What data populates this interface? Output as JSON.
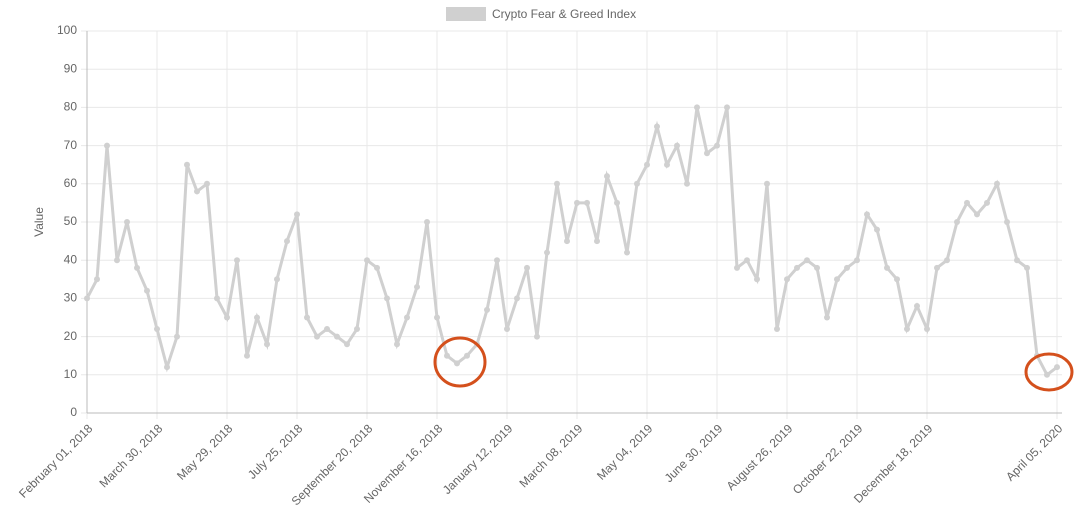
{
  "chart_data": {
    "type": "line",
    "legend": "Crypto Fear & Greed Index",
    "ylabel": "Value",
    "color": "#d0d0d0",
    "grid": true,
    "ylim": [
      0,
      100
    ],
    "yticks": [
      0,
      10,
      20,
      30,
      40,
      50,
      60,
      70,
      80,
      90,
      100
    ],
    "categories": [
      "February 01, 2018",
      null,
      null,
      null,
      null,
      null,
      null,
      "March 30, 2018",
      null,
      null,
      null,
      null,
      null,
      null,
      "May 29, 2018",
      null,
      null,
      null,
      null,
      null,
      null,
      "July 25, 2018",
      null,
      null,
      null,
      null,
      null,
      null,
      "September 20, 2018",
      null,
      null,
      null,
      null,
      null,
      null,
      "November 16, 2018",
      null,
      null,
      null,
      null,
      null,
      null,
      "January 12, 2019",
      null,
      null,
      null,
      null,
      null,
      null,
      "March 08, 2019",
      null,
      null,
      null,
      null,
      null,
      null,
      "May 04, 2019",
      null,
      null,
      null,
      null,
      null,
      null,
      "June 30, 2019",
      null,
      null,
      null,
      null,
      null,
      null,
      "August 26, 2019",
      null,
      null,
      null,
      null,
      null,
      null,
      "October 22, 2019",
      null,
      null,
      null,
      null,
      null,
      null,
      "December 18, 2019",
      null,
      null,
      null,
      null,
      null,
      null,
      null,
      null,
      null,
      null,
      null,
      null,
      "April 05, 2020"
    ],
    "values": [
      30,
      35,
      70,
      40,
      50,
      38,
      32,
      22,
      12,
      20,
      65,
      58,
      60,
      30,
      25,
      40,
      15,
      25,
      18,
      35,
      45,
      52,
      25,
      20,
      22,
      20,
      18,
      22,
      40,
      38,
      30,
      18,
      25,
      33,
      50,
      25,
      15,
      13,
      15,
      18,
      27,
      40,
      22,
      30,
      38,
      20,
      42,
      60,
      45,
      55,
      55,
      45,
      62,
      55,
      42,
      60,
      65,
      75,
      65,
      70,
      60,
      80,
      68,
      70,
      80,
      38,
      40,
      35,
      60,
      22,
      35,
      38,
      40,
      38,
      25,
      35,
      38,
      40,
      52,
      48,
      38,
      35,
      22,
      28,
      22,
      38,
      40,
      50,
      55,
      52,
      55,
      60,
      50,
      40,
      38,
      15,
      10,
      12
    ]
  }
}
